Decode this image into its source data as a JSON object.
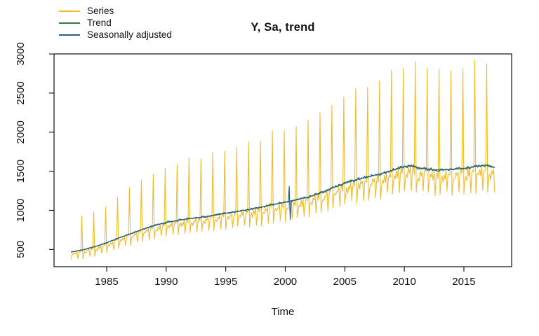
{
  "figure": {
    "background": "#ffffff",
    "axis_color": "#111111"
  },
  "chart_data": {
    "type": "line",
    "title": "Y, Sa, trend",
    "xlabel": "Time",
    "ylabel": "",
    "grid": false,
    "legend_position": "topleft",
    "x_ticks": [
      1985,
      1990,
      1995,
      2000,
      2005,
      2010,
      2015
    ],
    "y_ticks": [
      500,
      1000,
      1500,
      2000,
      2500,
      3000
    ],
    "xlim": [
      1980.58,
      2019.01
    ],
    "ylim": [
      279,
      3001
    ],
    "frequency": 12,
    "start_year": 1982,
    "n_months": 428,
    "series": [
      {
        "name": "Series",
        "color": "#F0BC2E"
      },
      {
        "name": "Trend",
        "color": "#377B3C"
      },
      {
        "name": "Seasonally adjusted",
        "color": "#2A5E8C"
      }
    ],
    "trend_anchors": [
      [
        1982,
        465
      ],
      [
        1983,
        495
      ],
      [
        1984,
        535
      ],
      [
        1985,
        585
      ],
      [
        1986,
        645
      ],
      [
        1987,
        700
      ],
      [
        1988,
        755
      ],
      [
        1989,
        805
      ],
      [
        1990,
        845
      ],
      [
        1991,
        872
      ],
      [
        1992,
        895
      ],
      [
        1993,
        912
      ],
      [
        1994,
        935
      ],
      [
        1995,
        962
      ],
      [
        1996,
        985
      ],
      [
        1997,
        1012
      ],
      [
        1998,
        1042
      ],
      [
        1999,
        1075
      ],
      [
        2000,
        1105
      ],
      [
        2001,
        1138
      ],
      [
        2002,
        1172
      ],
      [
        2003,
        1225
      ],
      [
        2004,
        1290
      ],
      [
        2005,
        1345
      ],
      [
        2006,
        1395
      ],
      [
        2007,
        1430
      ],
      [
        2008,
        1468
      ],
      [
        2009,
        1512
      ],
      [
        2010,
        1560
      ],
      [
        2010.5,
        1572
      ],
      [
        2011,
        1550
      ],
      [
        2012,
        1525
      ],
      [
        2013,
        1516
      ],
      [
        2014,
        1524
      ],
      [
        2015,
        1537
      ],
      [
        2016,
        1562
      ],
      [
        2017,
        1582
      ],
      [
        2017.58,
        1548
      ]
    ],
    "seasonal_factors": [
      0.79,
      0.9,
      0.94,
      0.91,
      0.97,
      0.93,
      0.99,
      0.8,
      0.94,
      0.99,
      0.95,
      1.84
    ],
    "irregular_pct": 1.3,
    "series_extra_noise_pct": 2.0,
    "noise_seed": 42,
    "sa_outliers": [
      {
        "year": 2000,
        "month": 5,
        "value": 1305
      },
      {
        "year": 2000,
        "month": 6,
        "value": 882
      }
    ]
  }
}
